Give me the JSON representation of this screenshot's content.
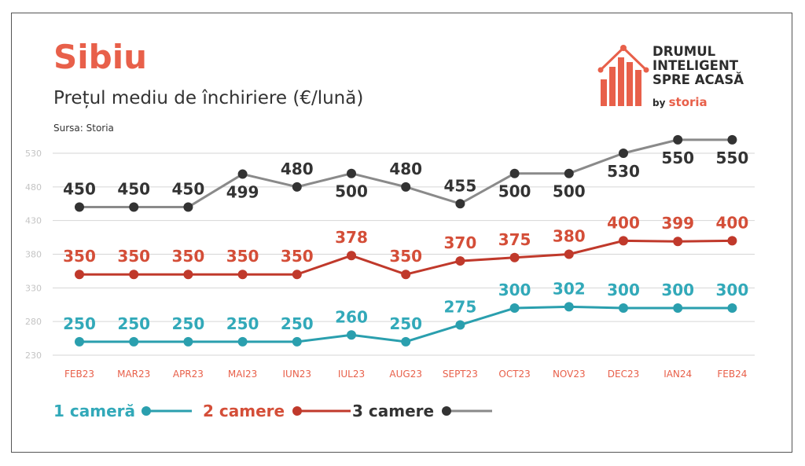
{
  "header": {
    "title": "Sibiu",
    "subtitle": "Prețul mediu de închiriere (€/lună)",
    "source": "Sursa: Storia"
  },
  "logo": {
    "line1": "DRUMUL",
    "line2": "INTELIGENT",
    "line3": "SPRE ACASĂ",
    "by": "by",
    "brand": "storia",
    "icon": "house-bar-chart-icon"
  },
  "colors": {
    "one_room": "#2a9fae",
    "one_room_label": "#32a9b9",
    "two_rooms": "#c0392b",
    "two_rooms_label": "#d44e38",
    "three_rooms_line": "#8a8a8a",
    "three_rooms_dot": "#333333",
    "three_rooms_label": "#333333",
    "tick_x": "#e8604a",
    "tick_y": "#c4c4c4",
    "grid": "#d6d6d6",
    "accent": "#e8604a"
  },
  "chart_data": {
    "type": "line",
    "categories": [
      "FEB23",
      "MAR23",
      "APR23",
      "MAI23",
      "IUN23",
      "IUL23",
      "AUG23",
      "SEPT23",
      "OCT23",
      "NOV23",
      "DEC23",
      "IAN24",
      "FEB24"
    ],
    "yticks": [
      230,
      280,
      330,
      380,
      430,
      480,
      530
    ],
    "ylim": [
      230,
      530
    ],
    "grid": true,
    "legend_position": "bottom",
    "series": [
      {
        "name": "1 cameră",
        "key": "one_room",
        "values": [
          250,
          250,
          250,
          250,
          250,
          260,
          250,
          275,
          300,
          302,
          300,
          300,
          300
        ]
      },
      {
        "name": "2 camere",
        "key": "two_rooms",
        "values": [
          350,
          350,
          350,
          350,
          350,
          378,
          350,
          370,
          375,
          380,
          400,
          399,
          400
        ]
      },
      {
        "name": "3 camere",
        "key": "three_rooms",
        "values": [
          450,
          450,
          450,
          499,
          480,
          500,
          480,
          455,
          500,
          500,
          530,
          550,
          550
        ]
      }
    ]
  }
}
